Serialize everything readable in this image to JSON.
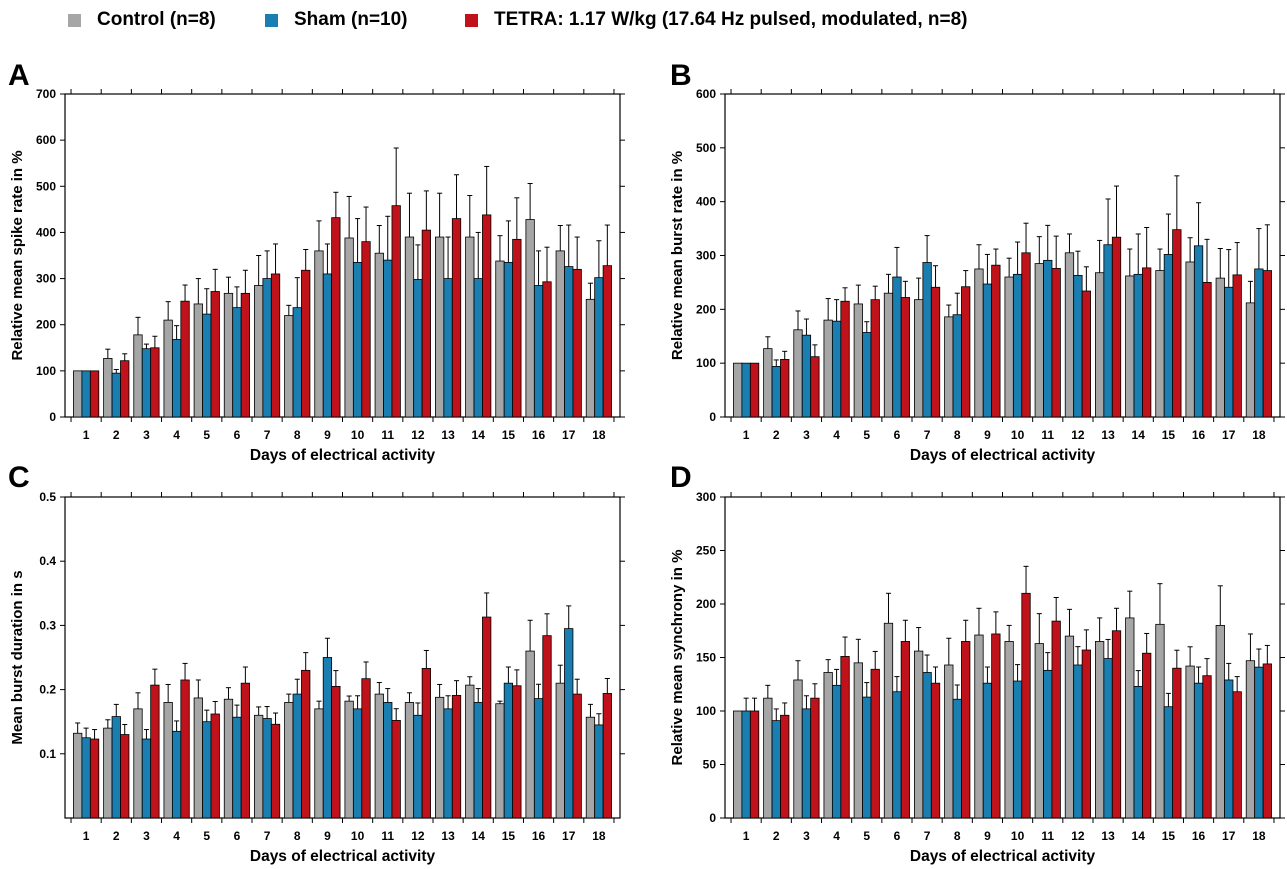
{
  "legend": [
    {
      "label": "Control (n=8)",
      "color": "#a6a6a6"
    },
    {
      "label": "Sham (n=10)",
      "color": "#1a7fb0"
    },
    {
      "label": "TETRA: 1.17 W/kg (17.64 Hz pulsed, modulated, n=8)",
      "color": "#c0121a"
    }
  ],
  "chart_data": [
    {
      "type": "bar",
      "panel_label": "A",
      "xlabel": "Days of electrical activity",
      "ylabel": "Relative mean spike rate in %",
      "ylim": [
        0,
        700
      ],
      "yticks": [
        0,
        100,
        200,
        300,
        400,
        500,
        600,
        700
      ],
      "categories": [
        "1",
        "2",
        "3",
        "4",
        "5",
        "6",
        "7",
        "8",
        "9",
        "10",
        "11",
        "12",
        "13",
        "14",
        "15",
        "16",
        "17",
        "18"
      ],
      "series": [
        {
          "name": "Control (n=8)",
          "values": [
            100,
            127,
            178,
            210,
            245,
            268,
            285,
            220,
            360,
            388,
            355,
            390,
            390,
            390,
            338,
            428,
            360,
            255
          ],
          "errors": [
            0,
            20,
            38,
            40,
            55,
            35,
            65,
            22,
            65,
            90,
            60,
            95,
            95,
            90,
            55,
            78,
            55,
            35
          ]
        },
        {
          "name": "Sham (n=10)",
          "values": [
            100,
            95,
            148,
            168,
            223,
            237,
            300,
            237,
            310,
            335,
            340,
            298,
            300,
            300,
            335,
            285,
            326,
            302
          ],
          "errors": [
            0,
            8,
            10,
            30,
            55,
            45,
            60,
            65,
            65,
            95,
            95,
            75,
            90,
            100,
            90,
            75,
            90,
            80
          ]
        },
        {
          "name": "TETRA: 1.17 W/kg (17.64 Hz pulsed, modulated, n=8)",
          "values": [
            100,
            122,
            150,
            251,
            272,
            268,
            310,
            318,
            432,
            380,
            458,
            405,
            430,
            438,
            385,
            293,
            320,
            328
          ],
          "errors": [
            0,
            15,
            25,
            35,
            48,
            50,
            65,
            45,
            55,
            75,
            125,
            85,
            95,
            105,
            90,
            75,
            70,
            88
          ]
        }
      ]
    },
    {
      "type": "bar",
      "panel_label": "B",
      "xlabel": "Days of electrical activity",
      "ylabel": "Relative mean burst rate in %",
      "ylim": [
        0,
        600
      ],
      "yticks": [
        0,
        100,
        200,
        300,
        400,
        500,
        600
      ],
      "categories": [
        "1",
        "2",
        "3",
        "4",
        "5",
        "6",
        "7",
        "8",
        "9",
        "10",
        "11",
        "12",
        "13",
        "14",
        "15",
        "16",
        "17",
        "18"
      ],
      "series": [
        {
          "name": "Control (n=8)",
          "values": [
            100,
            127,
            162,
            180,
            210,
            230,
            218,
            186,
            275,
            260,
            285,
            305,
            268,
            262,
            272,
            288,
            258,
            212
          ],
          "errors": [
            0,
            22,
            35,
            40,
            35,
            35,
            40,
            22,
            45,
            35,
            50,
            35,
            60,
            50,
            40,
            45,
            55,
            40
          ]
        },
        {
          "name": "Sham (n=10)",
          "values": [
            100,
            94,
            152,
            178,
            157,
            260,
            287,
            190,
            247,
            265,
            291,
            263,
            320,
            265,
            302,
            318,
            241,
            275
          ],
          "errors": [
            0,
            12,
            30,
            40,
            20,
            55,
            50,
            40,
            55,
            60,
            65,
            45,
            85,
            75,
            75,
            80,
            70,
            75
          ]
        },
        {
          "name": "TETRA: 1.17 W/kg (17.64 Hz pulsed, modulated, n=8)",
          "values": [
            100,
            107,
            112,
            215,
            218,
            222,
            241,
            242,
            282,
            305,
            276,
            234,
            334,
            277,
            348,
            250,
            264,
            272
          ],
          "errors": [
            0,
            15,
            22,
            25,
            25,
            30,
            40,
            30,
            30,
            55,
            60,
            45,
            95,
            75,
            100,
            80,
            60,
            85
          ]
        }
      ]
    },
    {
      "type": "bar",
      "panel_label": "C",
      "xlabel": "Days of electrical activity",
      "ylabel": "Mean burst duration in s",
      "ylim": [
        0,
        0.5
      ],
      "yticks": [
        0.1,
        0.2,
        0.3,
        0.4,
        0.5
      ],
      "categories": [
        "1",
        "2",
        "3",
        "4",
        "5",
        "6",
        "7",
        "8",
        "9",
        "10",
        "11",
        "12",
        "13",
        "14",
        "15",
        "16",
        "17",
        "18"
      ],
      "series": [
        {
          "name": "Control (n=8)",
          "values": [
            0.132,
            0.14,
            0.17,
            0.18,
            0.187,
            0.185,
            0.16,
            0.18,
            0.17,
            0.182,
            0.193,
            0.18,
            0.188,
            0.207,
            0.178,
            0.26,
            0.21,
            0.157
          ],
          "errors": [
            0.016,
            0.013,
            0.025,
            0.028,
            0.028,
            0.018,
            0.013,
            0.013,
            0.012,
            0.008,
            0.018,
            0.015,
            0.02,
            0.013,
            0.004,
            0.048,
            0.028,
            0.02
          ]
        },
        {
          "name": "Sham (n=10)",
          "values": [
            0.125,
            0.158,
            0.123,
            0.135,
            0.15,
            0.157,
            0.155,
            0.193,
            0.25,
            0.17,
            0.18,
            0.16,
            0.17,
            0.18,
            0.21,
            0.186,
            0.295,
            0.145
          ]
        },
        {
          "name": "TETRA: 1.17 W/kg (17.64 Hz pulsed, modulated, n=8)",
          "values": [
            0.123,
            0.13,
            0.207,
            0.215,
            0.162,
            0.21,
            0.146,
            0.23,
            0.205,
            0.217,
            0.152,
            0.233,
            0.191,
            0.313,
            0.206,
            0.284,
            0.193,
            0.194
          ]
        }
      ]
    },
    {
      "type": "bar",
      "panel_label": "D",
      "xlabel": "Days of electrical activity",
      "ylabel": "Relative mean synchrony in %",
      "ylim": [
        0,
        300
      ],
      "yticks": [
        0,
        50,
        100,
        150,
        200,
        250,
        300
      ],
      "categories": [
        "1",
        "2",
        "3",
        "4",
        "5",
        "6",
        "7",
        "8",
        "9",
        "10",
        "11",
        "12",
        "13",
        "14",
        "15",
        "16",
        "17",
        "18"
      ],
      "series": [
        {
          "name": "Control (n=8)",
          "values": [
            100,
            112,
            129,
            136,
            145,
            182,
            156,
            143,
            171,
            165,
            163,
            170,
            165,
            187,
            181,
            142,
            180,
            147
          ],
          "errors": [
            0,
            12,
            18,
            12,
            22,
            28,
            22,
            25,
            25,
            15,
            28,
            25,
            22,
            25,
            38,
            18,
            37,
            25
          ]
        },
        {
          "name": "Sham (n=10)",
          "values": [
            100,
            91,
            102,
            124,
            113,
            118,
            136,
            111,
            126,
            128,
            138,
            143,
            149,
            123,
            104,
            126,
            129,
            141
          ]
        },
        {
          "name": "TETRA: 1.17 W/kg (17.64 Hz pulsed, modulated, n=8)",
          "values": [
            100,
            96,
            112,
            151,
            139,
            165,
            126,
            165,
            172,
            210,
            184,
            157,
            175,
            154,
            140,
            133,
            118,
            144
          ]
        }
      ]
    }
  ]
}
